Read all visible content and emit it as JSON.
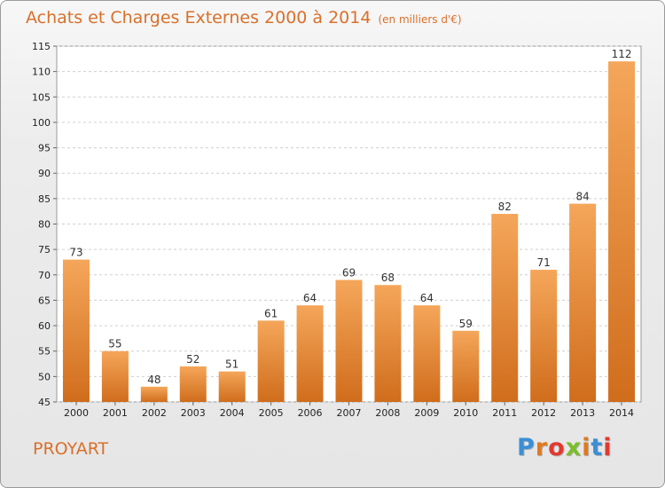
{
  "header": {
    "title": "Achats et Charges Externes 2000 à 2014",
    "subtitle": "(en milliers d'€)"
  },
  "footer": {
    "commune": "PROYART",
    "logo_text": "Proxiti",
    "logo_colors": [
      "#3a8fd6",
      "#e07a1f",
      "#e03a2f",
      "#7cbd2c",
      "#e07a1f",
      "#3a8fd6",
      "#e03a2f"
    ]
  },
  "colors": {
    "title": "#d9702a",
    "bar_light": "#f5a65a",
    "bar_dark": "#d06d1c"
  },
  "chart_data": {
    "type": "bar",
    "categories": [
      "2000",
      "2001",
      "2002",
      "2003",
      "2004",
      "2005",
      "2006",
      "2007",
      "2008",
      "2009",
      "2010",
      "2011",
      "2012",
      "2013",
      "2014"
    ],
    "values": [
      73,
      55,
      48,
      52,
      51,
      61,
      64,
      69,
      68,
      64,
      59,
      82,
      71,
      84,
      112
    ],
    "ylim": [
      45,
      115
    ],
    "yticks": [
      45,
      50,
      55,
      60,
      65,
      70,
      75,
      80,
      85,
      90,
      95,
      100,
      105,
      110,
      115
    ],
    "grid": true,
    "xlabel": "",
    "ylabel": ""
  }
}
